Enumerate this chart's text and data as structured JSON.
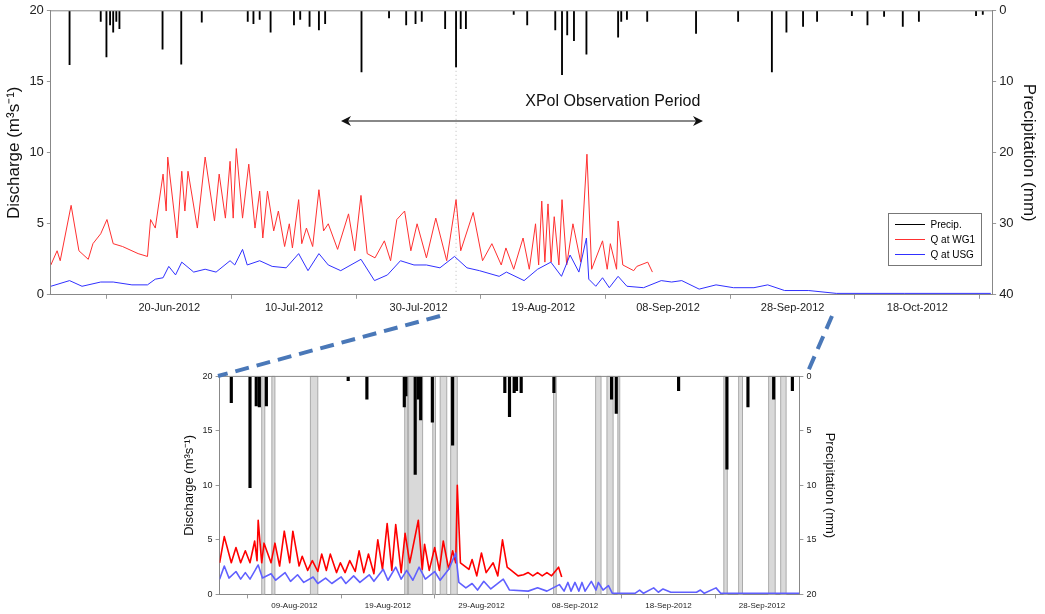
{
  "chart_data": [
    {
      "type": "line",
      "ylabel": "Discharge (m³s⁻¹)",
      "y2label": "Precipitation (mm)",
      "xlim": [
        "2012-06-01",
        "2012-10-30"
      ],
      "xticks": [
        {
          "value": "2012-06-20",
          "label": "20-Jun-2012"
        },
        {
          "value": "2012-07-10",
          "label": "10-Jul-2012"
        },
        {
          "value": "2012-07-30",
          "label": "30-Jul-2012"
        },
        {
          "value": "2012-08-19",
          "label": "19-Aug-2012"
        },
        {
          "value": "2012-09-08",
          "label": "08-Sep-2012"
        },
        {
          "value": "2012-09-28",
          "label": "28-Sep-2012"
        },
        {
          "value": "2012-10-18",
          "label": "18-Oct-2012"
        }
      ],
      "ylim": [
        0,
        20
      ],
      "yticks": [
        0,
        5,
        10,
        15,
        20
      ],
      "y2lim": [
        40,
        0
      ],
      "y2ticks": [
        0,
        10,
        20,
        30,
        40
      ],
      "legend": "right",
      "ref_lines": [
        {
          "axis": "x",
          "value": "2012-08-05",
          "line_style": "dotted",
          "color": "#bbbbbb"
        }
      ],
      "annotations": [
        "XPol Observation Period"
      ],
      "series": [
        {
          "name": "Precip.",
          "type": "bar",
          "axis": "y2",
          "color": "#000000",
          "x": [
            "2012-06-04",
            "2012-06-09",
            "2012-06-09T22:00",
            "2012-06-10T12:00",
            "2012-06-11",
            "2012-06-11T12:00",
            "2012-06-12",
            "2012-06-18T22:00",
            "2012-06-21T22:00",
            "2012-06-25T05:00",
            "2012-07-02T14:00",
            "2012-07-03T12:00",
            "2012-07-04T12:00",
            "2012-07-06T06:00",
            "2012-07-10",
            "2012-07-11",
            "2012-07-12T12:00",
            "2012-07-14",
            "2012-07-15",
            "2012-07-20T20:00",
            "2012-07-25T06:00",
            "2012-07-28",
            "2012-07-29T12:00",
            "2012-07-30T12:00",
            "2012-08-03T06:00",
            "2012-08-05",
            "2012-08-05T18:00",
            "2012-08-06T14:00",
            "2012-08-14T06:00",
            "2012-08-16T10:00",
            "2012-08-20T22:00",
            "2012-08-22",
            "2012-08-22T20:00",
            "2012-08-23T22:00",
            "2012-08-25T22:00",
            "2012-08-31",
            "2012-08-31T12:00",
            "2012-09-01T10:00",
            "2012-09-04T16:00",
            "2012-09-12T12:00",
            "2012-09-19T06:00",
            "2012-09-24T16:00",
            "2012-09-27",
            "2012-09-29T16:00",
            "2012-10-01T22:00",
            "2012-10-07T12:00",
            "2012-10-10",
            "2012-10-12T16:00",
            "2012-10-15T16:00",
            "2012-10-18T06:00",
            "2012-10-27T10:00",
            "2012-10-28T12:00"
          ],
          "values": [
            7.6,
            1.5,
            6.5,
            2.0,
            3.0,
            1.5,
            2.5,
            5.4,
            7.5,
            1.6,
            1.5,
            1.8,
            1.2,
            3.0,
            2.0,
            1.2,
            2.2,
            2.7,
            1.8,
            8.6,
            1.0,
            2.0,
            1.8,
            1.5,
            2.5,
            7.9,
            2.5,
            2.5,
            0.5,
            2.0,
            2.7,
            9.0,
            3.4,
            4.2,
            6.1,
            3.7,
            1.5,
            1.2,
            1.5,
            3.2,
            1.5,
            8.6,
            3.0,
            2.2,
            1.5,
            0.7,
            2.0,
            0.8,
            2.2,
            1.5,
            0.7,
            0.5
          ]
        },
        {
          "name": "Q at WG1",
          "color": "#ff3030",
          "x": [
            "2012-06-01",
            "2012-06-02",
            "2012-06-02T12:00",
            "2012-06-04T06:00",
            "2012-06-05T12:00",
            "2012-06-07",
            "2012-06-07T18:00",
            "2012-06-09",
            "2012-06-10",
            "2012-06-11",
            "2012-06-12T12:00",
            "2012-06-15",
            "2012-06-16T12:00",
            "2012-06-17",
            "2012-06-17T18:00",
            "2012-06-19",
            "2012-06-19T12:00",
            "2012-06-19T18:00",
            "2012-06-21T06:00",
            "2012-06-22",
            "2012-06-22T12:00",
            "2012-06-23",
            "2012-06-24T12:00",
            "2012-06-25T18:00",
            "2012-06-27T06:00",
            "2012-06-28",
            "2012-06-29",
            "2012-06-29T18:00",
            "2012-06-30T06:00",
            "2012-06-30T18:00",
            "2012-07-01T18:00",
            "2012-07-02T18:00",
            "2012-07-03T18:00",
            "2012-07-04T12:00",
            "2012-07-05",
            "2012-07-05T18:00",
            "2012-07-06T18:00",
            "2012-07-07T12:00",
            "2012-07-08T12:00",
            "2012-07-09T06:00",
            "2012-07-09T18:00",
            "2012-07-10T18:00",
            "2012-07-11T06:00",
            "2012-07-12",
            "2012-07-13",
            "2012-07-14",
            "2012-07-14T18:00",
            "2012-07-15T12:00",
            "2012-07-17",
            "2012-07-18T18:00",
            "2012-07-19T18:00",
            "2012-07-20T18:00",
            "2012-07-21T18:00",
            "2012-07-23",
            "2012-07-24T12:00",
            "2012-07-25T12:00",
            "2012-07-26T12:00",
            "2012-07-27T18:00",
            "2012-07-28T18:00",
            "2012-07-29T18:00",
            "2012-07-31T06:00",
            "2012-08-01T18:00",
            "2012-08-03T12:00",
            "2012-08-05",
            "2012-08-05T18:00",
            "2012-08-07T18:00",
            "2012-08-09T06:00",
            "2012-08-10T18:00",
            "2012-08-12T06:00",
            "2012-08-13",
            "2012-08-14T06:00",
            "2012-08-15T18:00",
            "2012-08-16T18:00",
            "2012-08-17T18:00",
            "2012-08-18T06:00",
            "2012-08-18T18:00",
            "2012-08-19T06:00",
            "2012-08-19T18:00",
            "2012-08-20T06:00",
            "2012-08-20T18:00",
            "2012-08-21T12:00",
            "2012-08-22",
            "2012-08-22T18:00",
            "2012-08-23T18:00",
            "2012-08-25",
            "2012-08-26",
            "2012-08-26T18:00",
            "2012-08-28T12:00",
            "2012-08-29T06:00",
            "2012-08-29T18:00",
            "2012-08-30T18:00",
            "2012-08-31",
            "2012-08-31T18:00",
            "2012-09-02T12:00",
            "2012-09-03",
            "2012-09-04T18:00",
            "2012-09-05T12:00"
          ],
          "values": [
            2.1,
            3.1,
            2.4,
            6.3,
            3.1,
            2.5,
            3.6,
            4.3,
            5.3,
            3.6,
            3.4,
            2.9,
            2.7,
            5.3,
            4.7,
            8.5,
            5.9,
            9.7,
            4.0,
            8.7,
            5.9,
            8.7,
            4.7,
            9.7,
            5.2,
            8.5,
            5.4,
            9.4,
            5.4,
            10.3,
            5.4,
            9.2,
            4.7,
            7.3,
            4.0,
            7.3,
            4.5,
            5.9,
            3.4,
            5.0,
            3.3,
            6.7,
            3.6,
            4.7,
            3.4,
            7.4,
            4.5,
            5.0,
            3.2,
            5.7,
            3.1,
            7.0,
            2.9,
            2.6,
            3.8,
            2.4,
            5.3,
            5.9,
            3.1,
            5.0,
            2.6,
            5.4,
            2.4,
            6.7,
            3.1,
            5.8,
            2.4,
            3.6,
            2.1,
            3.3,
            1.8,
            4.0,
            1.8,
            5.0,
            2.1,
            6.6,
            2.3,
            6.4,
            2.3,
            5.5,
            2.1,
            6.7,
            2.1,
            5.0,
            2.3,
            9.9,
            1.8,
            3.8,
            1.8,
            3.6,
            1.8,
            5.2,
            2.1,
            1.7,
            2.0,
            2.3,
            1.6
          ]
        },
        {
          "name": "Q at USG",
          "color": "#3030ff",
          "x": [
            "2012-06-01",
            "2012-06-04",
            "2012-06-06",
            "2012-06-09",
            "2012-06-11",
            "2012-06-14",
            "2012-06-16T12:00",
            "2012-06-17T18:00",
            "2012-06-19",
            "2012-06-19T22:00",
            "2012-06-21",
            "2012-06-22",
            "2012-06-23T22:00",
            "2012-06-25T18:00",
            "2012-06-27T12:00",
            "2012-06-29T18:00",
            "2012-06-30T12:00",
            "2012-07-01T18:00",
            "2012-07-02T12:00",
            "2012-07-04T12:00",
            "2012-07-06T12:00",
            "2012-07-08T18:00",
            "2012-07-10T18:00",
            "2012-07-12T06:00",
            "2012-07-14",
            "2012-07-15T12:00",
            "2012-07-17T12:00",
            "2012-07-20T18:00",
            "2012-07-22T22:00",
            "2012-07-25",
            "2012-07-27T02:00",
            "2012-07-29T06:00",
            "2012-07-31T06:00",
            "2012-08-02T10:00",
            "2012-08-04T18:00",
            "2012-08-06T18:00",
            "2012-08-08T18:00",
            "2012-08-11T22:00",
            "2012-08-13T02:00",
            "2012-08-15T22:00",
            "2012-08-18T02:00",
            "2012-08-20T05:00",
            "2012-08-21T22:00",
            "2012-08-23T07:00",
            "2012-08-24T17:00",
            "2012-08-25T22:00",
            "2012-08-26T07:00",
            "2012-08-27T10:00",
            "2012-08-28T12:00",
            "2012-08-29T14:00",
            "2012-08-31",
            "2012-09-01T10:00",
            "2012-09-04T02:00",
            "2012-09-06T22:00",
            "2012-09-08T14:00",
            "2012-09-10T05:00",
            "2012-09-13",
            "2012-09-15T17:00",
            "2012-09-18T12:00",
            "2012-09-21T19:00",
            "2012-09-24",
            "2012-09-26T17:00",
            "2012-09-30T14:00",
            "2012-10-05",
            "2012-10-16",
            "2012-10-29T19:00"
          ],
          "values": [
            0.6,
            1.0,
            0.6,
            0.9,
            0.9,
            0.7,
            0.7,
            1.1,
            1.2,
            2.0,
            1.4,
            2.3,
            1.6,
            1.8,
            1.6,
            2.4,
            2.1,
            3.2,
            2.1,
            2.4,
            2.0,
            1.9,
            2.9,
            1.7,
            2.9,
            2.1,
            1.7,
            2.5,
            1.0,
            1.4,
            2.4,
            2.1,
            2.1,
            1.9,
            2.7,
            1.9,
            1.7,
            1.3,
            1.6,
            1.0,
            1.8,
            2.3,
            1.3,
            2.8,
            1.6,
            4.0,
            1.1,
            0.6,
            1.2,
            0.5,
            1.3,
            0.6,
            0.5,
            1.0,
            0.9,
            1.0,
            0.4,
            0.7,
            0.5,
            0.5,
            0.7,
            0.3,
            0.3,
            0.1,
            0.1,
            0.1
          ]
        }
      ]
    },
    {
      "type": "line",
      "ylabel": "Discharge (m³s⁻¹)",
      "y2label": "Precipitation (mm)",
      "xlim": [
        "2012-08-01",
        "2012-10-02"
      ],
      "xticks": [
        {
          "value": "2012-08-09",
          "label": "09-Aug-2012"
        },
        {
          "value": "2012-08-19",
          "label": "19-Aug-2012"
        },
        {
          "value": "2012-08-29",
          "label": "29-Aug-2012"
        },
        {
          "value": "2012-09-08",
          "label": "08-Sep-2012"
        },
        {
          "value": "2012-09-18",
          "label": "18-Sep-2012"
        },
        {
          "value": "2012-09-28",
          "label": "28-Sep-2012"
        }
      ],
      "ylim": [
        0,
        20
      ],
      "yticks": [
        0,
        5,
        10,
        15,
        20
      ],
      "y2lim": [
        20,
        0
      ],
      "y2ticks": [
        0,
        5,
        10,
        15,
        20
      ],
      "bands": [
        {
          "axis": "x",
          "from": "2012-08-05T12:00",
          "to": "2012-08-05T20:00",
          "color": "#d9d9d9"
        },
        {
          "axis": "x",
          "from": "2012-08-06T14:00",
          "to": "2012-08-06T22:00",
          "color": "#d9d9d9"
        },
        {
          "axis": "x",
          "from": "2012-08-10T17:00",
          "to": "2012-08-11T12:00",
          "color": "#d9d9d9"
        },
        {
          "axis": "x",
          "from": "2012-08-20T19:00",
          "to": "2012-08-21T02:00",
          "color": "#d9d9d9"
        },
        {
          "axis": "x",
          "from": "2012-08-21T05:00",
          "to": "2012-08-22T17:00",
          "color": "#d9d9d9"
        },
        {
          "axis": "x",
          "from": "2012-08-23T19:00",
          "to": "2012-08-24T02:00",
          "color": "#d9d9d9"
        },
        {
          "axis": "x",
          "from": "2012-08-24T14:00",
          "to": "2012-08-25T07:00",
          "color": "#d9d9d9"
        },
        {
          "axis": "x",
          "from": "2012-08-25T17:00",
          "to": "2012-08-26T10:00",
          "color": "#d9d9d9"
        },
        {
          "axis": "x",
          "from": "2012-09-05T17:00",
          "to": "2012-09-06T00:00",
          "color": "#d9d9d9"
        },
        {
          "axis": "x",
          "from": "2012-09-10T05:00",
          "to": "2012-09-10T19:00",
          "color": "#d9d9d9"
        },
        {
          "axis": "x",
          "from": "2012-09-11T10:00",
          "to": "2012-09-12T02:00",
          "color": "#d9d9d9"
        },
        {
          "axis": "x",
          "from": "2012-09-12T14:00",
          "to": "2012-09-12T19:00",
          "color": "#d9d9d9"
        },
        {
          "axis": "x",
          "from": "2012-09-23T22:00",
          "to": "2012-09-24T07:00",
          "color": "#d9d9d9"
        },
        {
          "axis": "x",
          "from": "2012-09-25T12:00",
          "to": "2012-09-25T22:00",
          "color": "#d9d9d9"
        },
        {
          "axis": "x",
          "from": "2012-09-28T17:00",
          "to": "2012-09-29T10:00",
          "color": "#d9d9d9"
        },
        {
          "axis": "x",
          "from": "2012-09-30T00:00",
          "to": "2012-09-30T14:00",
          "color": "#d9d9d9"
        }
      ],
      "series": [
        {
          "type": "bar",
          "axis": "y2",
          "color": "#000000",
          "x": [
            "2012-08-02T06:00",
            "2012-08-04T06:00",
            "2012-08-04T22:00",
            "2012-08-05T06:00",
            "2012-08-06",
            "2012-08-14T18:00",
            "2012-08-16T18:00",
            "2012-08-20T18:00",
            "2012-08-20T22:00",
            "2012-08-21T22:00",
            "2012-08-22T06:00",
            "2012-08-22T12:00",
            "2012-08-23T18:00",
            "2012-08-25T22:00",
            "2012-08-31T12:00",
            "2012-09-01",
            "2012-09-01T12:00",
            "2012-09-01T18:00",
            "2012-09-02T06:00",
            "2012-09-05T18:00",
            "2012-09-11T22:00",
            "2012-09-12T10:00",
            "2012-09-19T02:00",
            "2012-09-24T06:00",
            "2012-09-26T12:00",
            "2012-09-29T06:00",
            "2012-10-01T06:00"
          ],
          "values": [
            2.4,
            10.2,
            2.7,
            2.8,
            2.7,
            0.4,
            2.1,
            2.8,
            1.8,
            9.0,
            2.1,
            4.0,
            4.2,
            6.3,
            1.5,
            3.7,
            1.5,
            1.3,
            1.5,
            1.5,
            2.1,
            3.4,
            1.3,
            8.5,
            2.8,
            2.1,
            1.3
          ]
        },
        {
          "color": "#ff0000",
          "x": [
            "2012-08-01",
            "2012-08-01T12:00",
            "2012-08-02T06:00",
            "2012-08-02T18:00",
            "2012-08-03T06:00",
            "2012-08-03T18:00",
            "2012-08-04T06:00",
            "2012-08-04T18:00",
            "2012-08-05",
            "2012-08-05T03:00",
            "2012-08-05T12:00",
            "2012-08-05T18:00",
            "2012-08-06T12:00",
            "2012-08-06T22:00",
            "2012-08-07T10:00",
            "2012-08-07T22:00",
            "2012-08-08T12:00",
            "2012-08-08T20:00",
            "2012-08-09T12:00",
            "2012-08-09T20:00",
            "2012-08-10T10:00",
            "2012-08-10T22:00",
            "2012-08-11T12:00",
            "2012-08-11T22:00",
            "2012-08-12T10:00",
            "2012-08-12T20:00",
            "2012-08-13T12:00",
            "2012-08-13T22:00",
            "2012-08-14T10:00",
            "2012-08-14T22:00",
            "2012-08-15T12:00",
            "2012-08-15T22:00",
            "2012-08-16T10:00",
            "2012-08-16T22:00",
            "2012-08-17T12:00",
            "2012-08-17T22:00",
            "2012-08-18T10:00",
            "2012-08-18T22:00",
            "2012-08-19T10:00",
            "2012-08-19T20:00",
            "2012-08-20T10:00",
            "2012-08-20T20:00",
            "2012-08-21T08:00",
            "2012-08-22T06:00",
            "2012-08-22T16:00",
            "2012-08-22T22:00",
            "2012-08-23T10:00",
            "2012-08-24",
            "2012-08-24T12:00",
            "2012-08-24T22:00",
            "2012-08-25T12:00",
            "2012-08-25T22:00",
            "2012-08-26T06:00",
            "2012-08-26T10:00",
            "2012-08-26T18:00",
            "2012-08-27T16:00",
            "2012-08-28",
            "2012-08-28T12:00",
            "2012-08-29",
            "2012-08-29T12:00",
            "2012-08-30T06:00",
            "2012-08-30T18:00",
            "2012-08-31T06:00",
            "2012-08-31T18:00",
            "2012-09-01T22:00",
            "2012-09-02T12:00",
            "2012-09-03",
            "2012-09-03T12:00",
            "2012-09-04",
            "2012-09-04T12:00",
            "2012-09-05",
            "2012-09-05T12:00",
            "2012-09-06T06:00",
            "2012-09-06T14:00"
          ],
          "values": [
            2.9,
            5.3,
            2.9,
            4.3,
            2.9,
            4.0,
            2.9,
            4.9,
            3.1,
            6.8,
            2.9,
            4.7,
            2.9,
            4.7,
            2.6,
            5.8,
            2.9,
            5.8,
            2.6,
            3.5,
            2.2,
            3.1,
            2.1,
            3.7,
            2.2,
            3.7,
            2.0,
            2.9,
            2.0,
            3.1,
            2.1,
            4.0,
            2.0,
            3.7,
            1.9,
            5.0,
            2.3,
            6.5,
            2.2,
            6.4,
            2.0,
            5.6,
            2.9,
            6.8,
            2.3,
            4.6,
            2.2,
            4.3,
            2.2,
            4.9,
            2.3,
            4.0,
            2.9,
            10.0,
            2.9,
            2.3,
            3.2,
            1.7,
            3.8,
            2.0,
            2.9,
            1.7,
            5.0,
            2.5,
            1.7,
            1.8,
            2.0,
            1.7,
            2.0,
            1.7,
            2.0,
            1.7,
            2.5,
            1.6
          ]
        },
        {
          "color": "#6060ff",
          "x": [
            "2012-08-01",
            "2012-08-01T12:00",
            "2012-08-02",
            "2012-08-02T18:00",
            "2012-08-03T06:00",
            "2012-08-03T18:00",
            "2012-08-04T06:00",
            "2012-08-05T03:00",
            "2012-08-05T14:00",
            "2012-08-06T12:00",
            "2012-08-07",
            "2012-08-08",
            "2012-08-08T14:00",
            "2012-08-09T08:00",
            "2012-08-10",
            "2012-08-11",
            "2012-08-11T12:00",
            "2012-08-12T08:00",
            "2012-08-13",
            "2012-08-14",
            "2012-08-14T12:00",
            "2012-08-15T08:00",
            "2012-08-16",
            "2012-08-17",
            "2012-08-17T12:00",
            "2012-08-18T12:00",
            "2012-08-19",
            "2012-08-19T20:00",
            "2012-08-20T10:00",
            "2012-08-21",
            "2012-08-21T16:00",
            "2012-08-22T08:00",
            "2012-08-23",
            "2012-08-24",
            "2012-08-24T14:00",
            "2012-08-25T12:00",
            "2012-08-26T06:00",
            "2012-08-26T14:00",
            "2012-08-27T08:00",
            "2012-08-28",
            "2012-08-28T14:00",
            "2012-08-29T06:00",
            "2012-08-30",
            "2012-08-31T08:00",
            "2012-09-01",
            "2012-09-03",
            "2012-09-04",
            "2012-09-05",
            "2012-09-06T08:00",
            "2012-09-06T20:00",
            "2012-09-07T06:00",
            "2012-09-07T14:00",
            "2012-09-08",
            "2012-09-08T10:00",
            "2012-09-08T18:00",
            "2012-09-09T02:00",
            "2012-09-09T18:00",
            "2012-09-10T06:00",
            "2012-09-10T12:00",
            "2012-09-11",
            "2012-09-11T14:00",
            "2012-09-12",
            "2012-09-14T10:00",
            "2012-09-14T22:00",
            "2012-09-15T08:00",
            "2012-09-16T10:00",
            "2012-09-16T22:00",
            "2012-09-17T10:00",
            "2012-09-18T06:00",
            "2012-09-21",
            "2012-09-21T10:00",
            "2012-09-21T20:00",
            "2012-09-23T02:00",
            "2012-09-23T14:00",
            "2012-10-02"
          ],
          "values": [
            1.4,
            2.6,
            1.5,
            2.1,
            1.4,
            2.0,
            1.4,
            2.7,
            1.5,
            1.9,
            1.3,
            2.0,
            1.2,
            1.8,
            1.1,
            1.6,
            1.0,
            1.5,
            1.0,
            1.6,
            1.0,
            1.7,
            1.1,
            1.8,
            1.2,
            2.3,
            1.3,
            2.5,
            1.4,
            2.2,
            1.3,
            2.5,
            1.4,
            2.1,
            1.3,
            2.3,
            3.8,
            1.1,
            0.6,
            1.0,
            0.4,
            1.2,
            0.5,
            1.4,
            0.4,
            0.3,
            0.6,
            0.3,
            0.9,
            0.3,
            1.1,
            0.3,
            1.1,
            0.3,
            1.1,
            0.3,
            1.2,
            0.4,
            1.1,
            0.4,
            0.8,
            0.1,
            0.1,
            0.4,
            0.1,
            0.6,
            0.2,
            0.5,
            0.2,
            0.2,
            0.4,
            0.1,
            0.6,
            0.1,
            0.1
          ]
        }
      ]
    }
  ]
}
